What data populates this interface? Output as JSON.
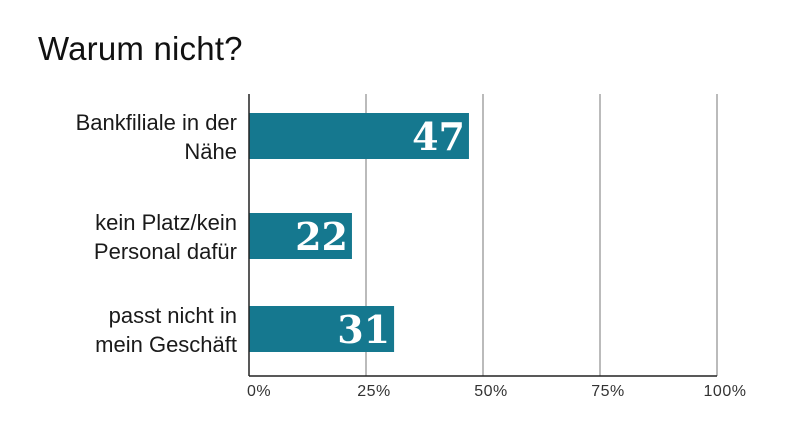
{
  "chart_data": {
    "type": "bar",
    "orientation": "horizontal",
    "title": "Warum nicht?",
    "categories": [
      [
        "Bankfiliale in der",
        "Nähe"
      ],
      [
        "kein Platz/kein",
        "Personal dafür"
      ],
      [
        "passt nicht in",
        "mein Geschäft"
      ]
    ],
    "values": [
      47,
      22,
      31
    ],
    "value_labels": [
      "47",
      "22",
      "31"
    ],
    "xlim": [
      0,
      100
    ],
    "ticks": [
      0,
      25,
      50,
      75,
      100
    ],
    "tick_labels": [
      "0%",
      "25%",
      "50%",
      "75%",
      "100%"
    ],
    "grid": true,
    "legend": "none",
    "colors": {
      "bar": "#15788f",
      "grid": "#777777",
      "axis": "#222222",
      "text": "#1a1a1a"
    }
  }
}
